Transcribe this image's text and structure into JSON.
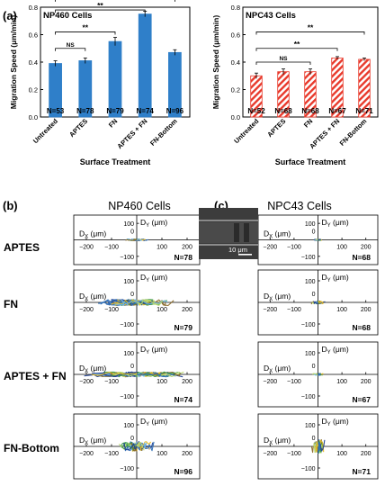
{
  "panels": {
    "a": "(a)",
    "b": "(b)",
    "c": "(c)"
  },
  "chart_data": [
    {
      "type": "bar",
      "title": "NP460 Cells",
      "xlabel": "Surface Treatment",
      "ylabel": "Migration Speed (μm/min)",
      "ylim": [
        0,
        0.8
      ],
      "yticks": [
        "0.0",
        "0.2",
        "0.4",
        "0.6",
        "0.8"
      ],
      "categories": [
        "Untreated",
        "APTES",
        "FN",
        "APTES + FN",
        "FN-Bottom"
      ],
      "values": [
        0.39,
        0.41,
        0.55,
        0.75,
        0.47
      ],
      "errors": [
        0.02,
        0.02,
        0.03,
        0.02,
        0.02
      ],
      "n_labels": [
        "N=53",
        "N=78",
        "N=79",
        "N=74",
        "N=96"
      ],
      "color": "#2f7fc9",
      "fill": "solid",
      "significance": [
        {
          "from": 0,
          "to": 1,
          "label": "NS"
        },
        {
          "from": 0,
          "to": 2,
          "label": "**"
        },
        {
          "from": 0,
          "to": 3,
          "label": "**"
        },
        {
          "from": 0,
          "to": 4,
          "label": "*"
        }
      ]
    },
    {
      "type": "bar",
      "title": "NPC43 Cells",
      "xlabel": "Surface Treatment",
      "ylabel": "Migration Speed (μm/min)",
      "ylim": [
        0,
        0.8
      ],
      "yticks": [
        "0.0",
        "0.2",
        "0.4",
        "0.6",
        "0.8"
      ],
      "categories": [
        "Untreated",
        "APTES",
        "FN",
        "APTES + FN",
        "FN-Bottom"
      ],
      "values": [
        0.3,
        0.33,
        0.33,
        0.43,
        0.42
      ],
      "errors": [
        0.02,
        0.02,
        0.02,
        0.01,
        0.01
      ],
      "n_labels": [
        "N=52",
        "N=68",
        "N=68",
        "N=67",
        "N=71"
      ],
      "color": "#e8392b",
      "fill": "hatched",
      "significance": [
        {
          "from": 0,
          "to": 2,
          "label": "NS"
        },
        {
          "from": 0,
          "to": 3,
          "label": "**"
        },
        {
          "from": 0,
          "to": 4,
          "label": "**"
        }
      ]
    },
    {
      "type": "scatter",
      "title_np460": "NP460 Cells",
      "title_npc43": "NPC43 Cells",
      "xlabel": "DX (μm)",
      "ylabel": "DY (μm)",
      "xlim": [
        -250,
        250
      ],
      "ylim": [
        -150,
        150
      ],
      "x_ticks": [
        "−200",
        "−100",
        "100",
        "200"
      ],
      "y_ticks": [
        "100",
        "0",
        "−100"
      ],
      "rows": [
        {
          "label": "APTES",
          "np460_n": "N=78",
          "npc43_n": "N=68",
          "np460_spread": [
            45,
            6
          ],
          "npc43_spread": [
            18,
            5
          ]
        },
        {
          "label": "FN",
          "np460_n": "N=79",
          "npc43_n": "N=68",
          "np460_spread": [
            150,
            18
          ],
          "npc43_spread": [
            30,
            8
          ]
        },
        {
          "label": "APTES + FN",
          "np460_n": "N=74",
          "npc43_n": "N=67",
          "np460_spread": [
            200,
            14
          ],
          "npc43_spread": [
            25,
            5
          ]
        },
        {
          "label": "FN-Bottom",
          "np460_n": "N=96",
          "npc43_n": "N=71",
          "np460_spread": [
            70,
            28
          ],
          "npc43_spread": [
            28,
            40
          ]
        }
      ],
      "inset_scale": "10 μm"
    }
  ]
}
